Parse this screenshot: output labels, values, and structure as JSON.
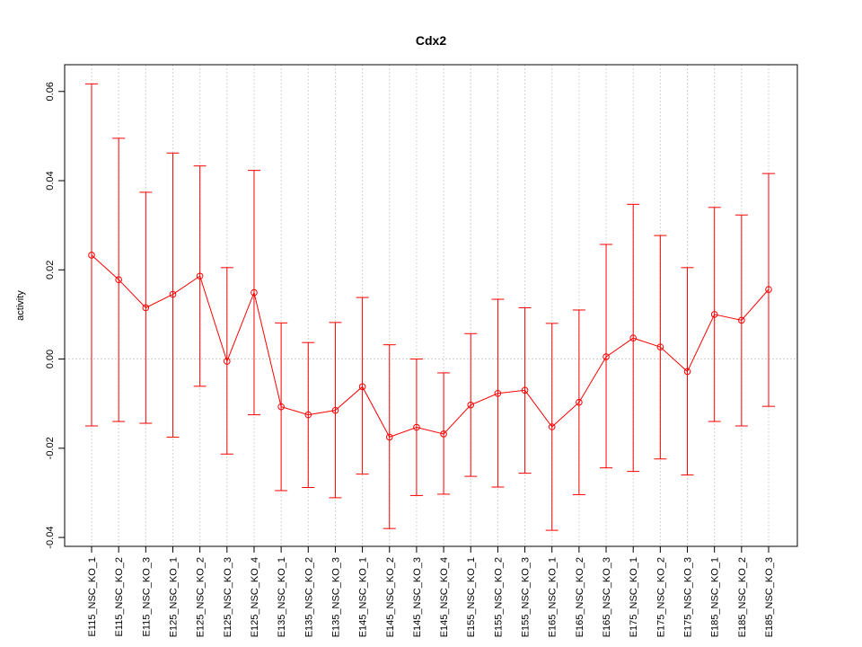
{
  "chart_data": {
    "type": "line",
    "title": "Cdx2",
    "xlabel": "",
    "ylabel": "activity",
    "ylim": [
      -0.042,
      0.066
    ],
    "yticks": [
      -0.04,
      -0.02,
      0.0,
      0.02,
      0.04,
      0.06
    ],
    "ytick_labels": [
      "-0.04",
      "-0.02",
      "0.00",
      "0.02",
      "0.04",
      "0.06"
    ],
    "grid": true,
    "color": "#ff0000",
    "categories": [
      "E115_NSC_KO_1",
      "E115_NSC_KO_2",
      "E115_NSC_KO_3",
      "E125_NSC_KO_1",
      "E125_NSC_KO_2",
      "E125_NSC_KO_3",
      "E125_NSC_KO_4",
      "E135_NSC_KO_1",
      "E135_NSC_KO_2",
      "E135_NSC_KO_3",
      "E145_NSC_KO_1",
      "E145_NSC_KO_2",
      "E145_NSC_KO_3",
      "E145_NSC_KO_4",
      "E155_NSC_KO_1",
      "E155_NSC_KO_2",
      "E155_NSC_KO_3",
      "E165_NSC_KO_1",
      "E165_NSC_KO_2",
      "E165_NSC_KO_3",
      "E175_NSC_KO_1",
      "E175_NSC_KO_2",
      "E175_NSC_KO_3",
      "E185_NSC_KO_1",
      "E185_NSC_KO_2",
      "E185_NSC_KO_3"
    ],
    "values": [
      0.0233,
      0.0178,
      0.0115,
      0.0145,
      0.0186,
      -0.0005,
      0.0149,
      -0.0107,
      -0.0125,
      -0.0115,
      -0.0062,
      -0.0175,
      -0.0153,
      -0.0168,
      -0.0103,
      -0.0077,
      -0.007,
      -0.0152,
      -0.0097,
      0.0005,
      0.0047,
      0.0027,
      -0.0028,
      0.01,
      0.0087,
      0.0156
    ],
    "upper": [
      0.0617,
      0.0495,
      0.0374,
      0.0462,
      0.0433,
      0.0205,
      0.0423,
      0.0081,
      0.0037,
      0.0082,
      0.0138,
      0.0032,
      0.0,
      -0.0031,
      0.0057,
      0.0134,
      0.0115,
      0.008,
      0.011,
      0.0257,
      0.0347,
      0.0277,
      0.0205,
      0.034,
      0.0323,
      0.0416
    ],
    "lower": [
      -0.015,
      -0.014,
      -0.0144,
      -0.0175,
      -0.0061,
      -0.0213,
      -0.0125,
      -0.0295,
      -0.0288,
      -0.0311,
      -0.0258,
      -0.038,
      -0.0306,
      -0.0303,
      -0.0263,
      -0.0287,
      -0.0256,
      -0.0384,
      -0.0304,
      -0.0244,
      -0.0252,
      -0.0224,
      -0.026,
      -0.014,
      -0.015,
      -0.0106
    ]
  }
}
